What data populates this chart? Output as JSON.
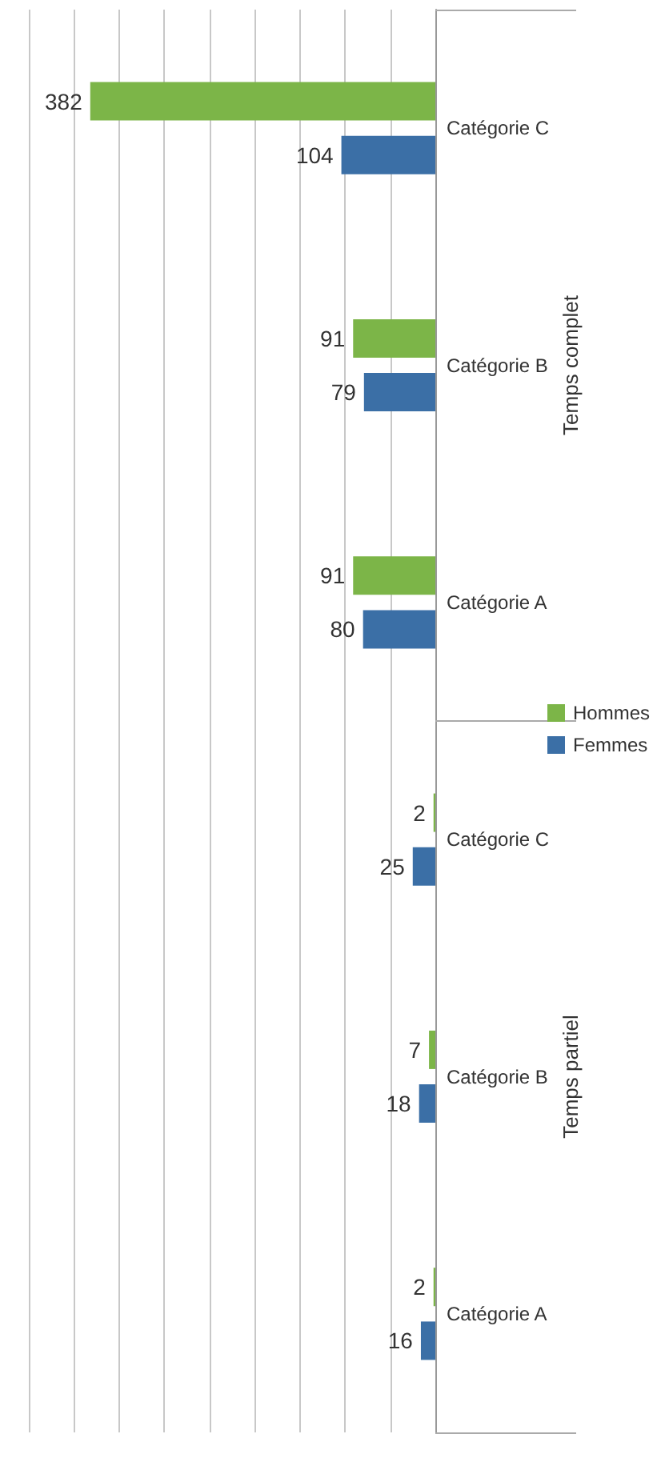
{
  "chart_data": {
    "type": "bar",
    "orientation": "horizontal",
    "categories": [
      "Catégorie C",
      "Catégorie B",
      "Catégorie A",
      "Catégorie C",
      "Catégorie B",
      "Catégorie A"
    ],
    "series": [
      {
        "name": "Hommes",
        "color": "#7cb548",
        "values": [
          382,
          91,
          91,
          2,
          7,
          2
        ]
      },
      {
        "name": "Femmes",
        "color": "#3b6fa6",
        "values": [
          104,
          79,
          80,
          25,
          18,
          16
        ]
      }
    ],
    "annotations": [
      "Temps complet",
      "Temps partiel"
    ],
    "xlim": [
      450,
      0
    ],
    "xticks": [
      {
        "value": 0,
        "label": null
      },
      {
        "value": 50,
        "label": null
      },
      {
        "value": 100,
        "label": null
      },
      {
        "value": 150,
        "label": null
      },
      {
        "value": 200,
        "label": null
      },
      {
        "value": 250,
        "label": null
      },
      {
        "value": 300,
        "label": null
      },
      {
        "value": 350,
        "label": null
      },
      {
        "value": 400,
        "label": null
      },
      {
        "value": 450,
        "label": null
      }
    ],
    "tick_labels": "y",
    "grid": true,
    "legend": "right",
    "data_labels": true
  }
}
